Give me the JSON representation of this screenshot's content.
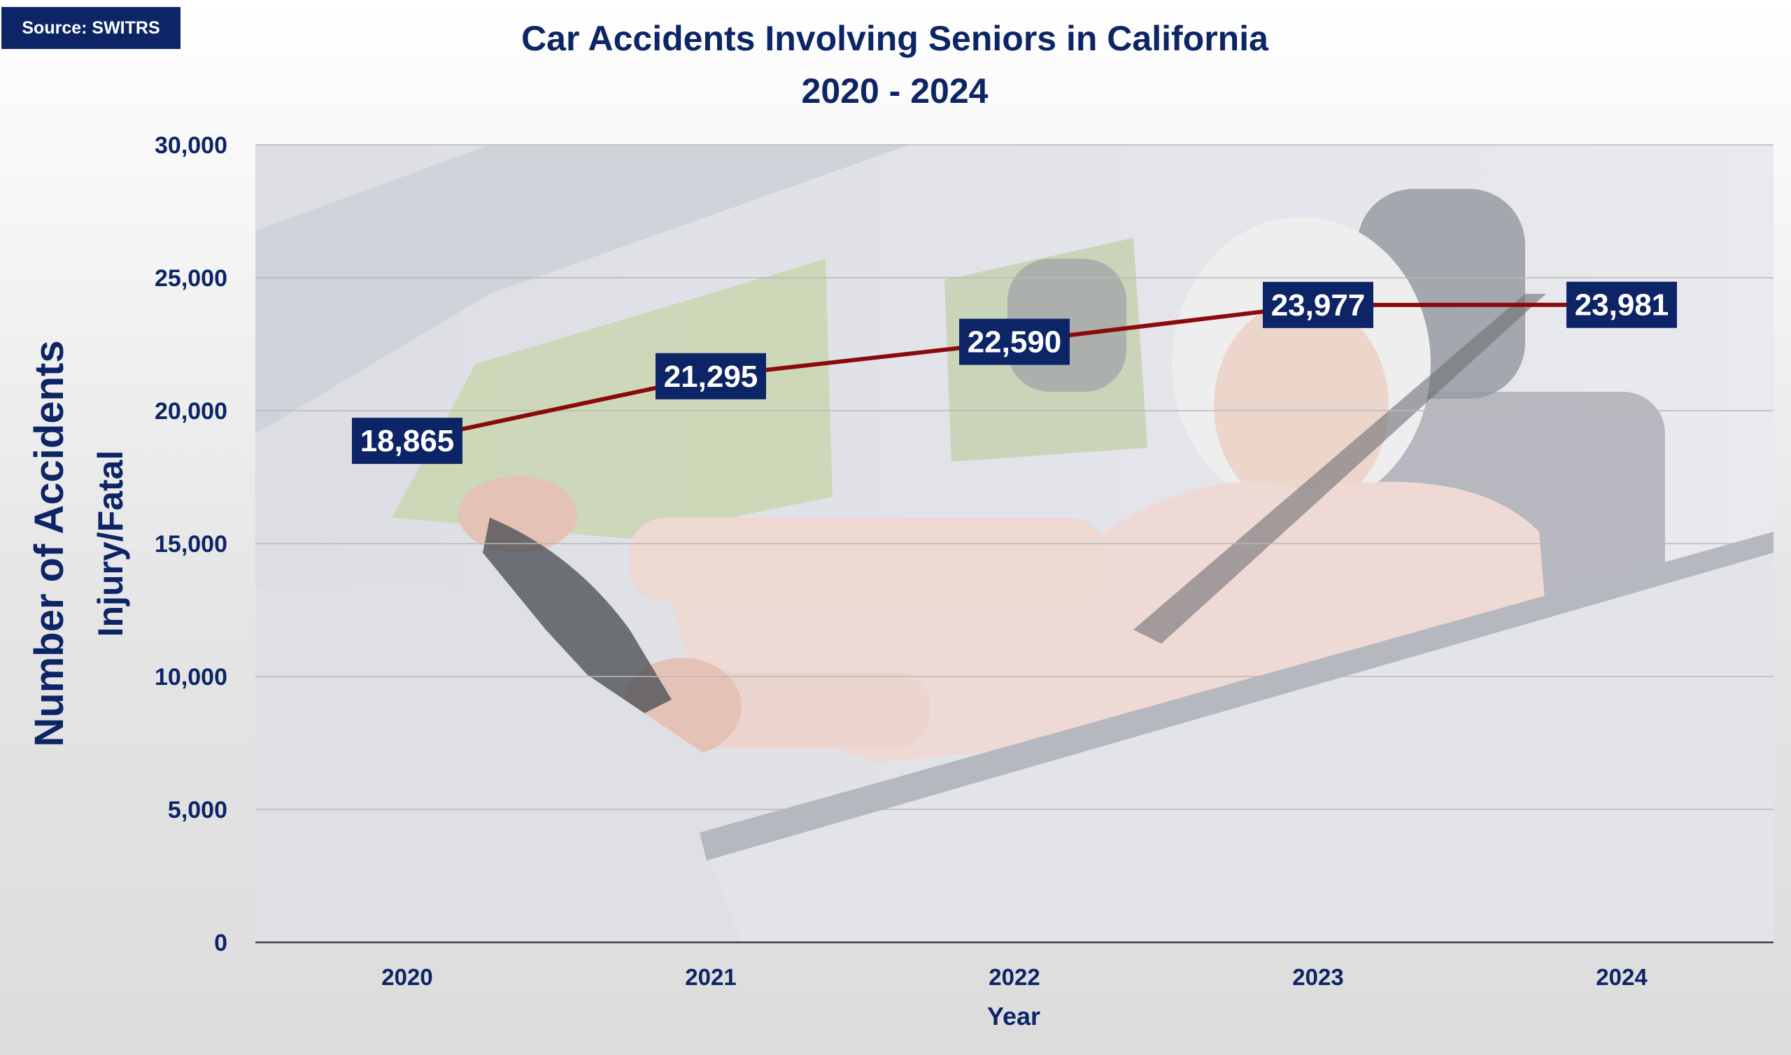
{
  "source_label": "Source: SWITRS",
  "chart_data": {
    "type": "line",
    "title": "Car Accidents Involving Seniors in California",
    "subtitle": "2020 - 2024",
    "xlabel": "Year",
    "ylabel": "Number of Accidents",
    "ylabel_sub": "Injury/Fatal",
    "categories": [
      "2020",
      "2021",
      "2022",
      "2023",
      "2024"
    ],
    "series": [
      {
        "values": [
          18865,
          21295,
          22590,
          23977,
          23981
        ]
      }
    ],
    "data_labels": [
      "18,865",
      "21,295",
      "22,590",
      "23,977",
      "23,981"
    ],
    "ylim": [
      0,
      30000
    ],
    "yticks": [
      0,
      5000,
      10000,
      15000,
      20000,
      25000,
      30000
    ],
    "ytick_labels": [
      "0",
      "5,000",
      "10,000",
      "15,000",
      "20,000",
      "25,000",
      "30,000"
    ],
    "grid": true,
    "legend": "none",
    "background_photo": "senior-woman-driving-car",
    "colors": {
      "line": "#8b0a0a",
      "label_box": "#0d2566",
      "label_text": "#ffffff",
      "title_text": "#0d2566",
      "grid": "#b8b8b8"
    }
  }
}
